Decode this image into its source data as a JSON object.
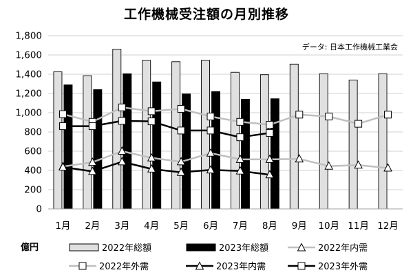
{
  "chart_data": {
    "type": "bar",
    "title": "工作機械受注額の月別推移",
    "source": "データ: 日本工作機械工業会",
    "unit": "億円",
    "categories": [
      "1月",
      "2月",
      "3月",
      "4月",
      "5月",
      "6月",
      "7月",
      "8月",
      "9月",
      "10月",
      "11月",
      "12月"
    ],
    "ylim": [
      0,
      1800
    ],
    "yticks": [
      0,
      200,
      400,
      600,
      800,
      1000,
      1200,
      1400,
      1600,
      1800
    ],
    "ytick_labels": [
      "0",
      "200",
      "400",
      "600",
      "800",
      "1,000",
      "1,200",
      "1,400",
      "1,600",
      "1,800"
    ],
    "grid": true,
    "legend": "bottom",
    "bar_series": [
      {
        "name": "2022年総額",
        "color": "#e0e0e0",
        "values": [
          1425,
          1385,
          1660,
          1545,
          1530,
          1545,
          1420,
          1395,
          1505,
          1405,
          1340,
          1405
        ]
      },
      {
        "name": "2023年総額",
        "color": "#000000",
        "values": [
          1290,
          1240,
          1405,
          1320,
          1195,
          1220,
          1140,
          1145,
          null,
          null,
          null,
          null
        ]
      }
    ],
    "line_series": [
      {
        "name": "2022年内需",
        "color": "#bfbfbf",
        "marker": "triangle",
        "values": [
          440,
          485,
          600,
          530,
          490,
          580,
          515,
          515,
          520,
          445,
          455,
          425
        ]
      },
      {
        "name": "2022年外需",
        "color": "#bfbfbf",
        "marker": "square",
        "values": [
          985,
          905,
          1055,
          1015,
          1040,
          960,
          905,
          875,
          980,
          960,
          885,
          980
        ]
      },
      {
        "name": "2023年内需",
        "color": "#000000",
        "marker": "triangle",
        "values": [
          435,
          390,
          490,
          415,
          380,
          405,
          395,
          355,
          null,
          null,
          null,
          null
        ]
      },
      {
        "name": "2023年外需",
        "color": "#000000",
        "marker": "square",
        "values": [
          860,
          860,
          915,
          910,
          815,
          815,
          745,
          790,
          null,
          null,
          null,
          null
        ]
      }
    ]
  }
}
